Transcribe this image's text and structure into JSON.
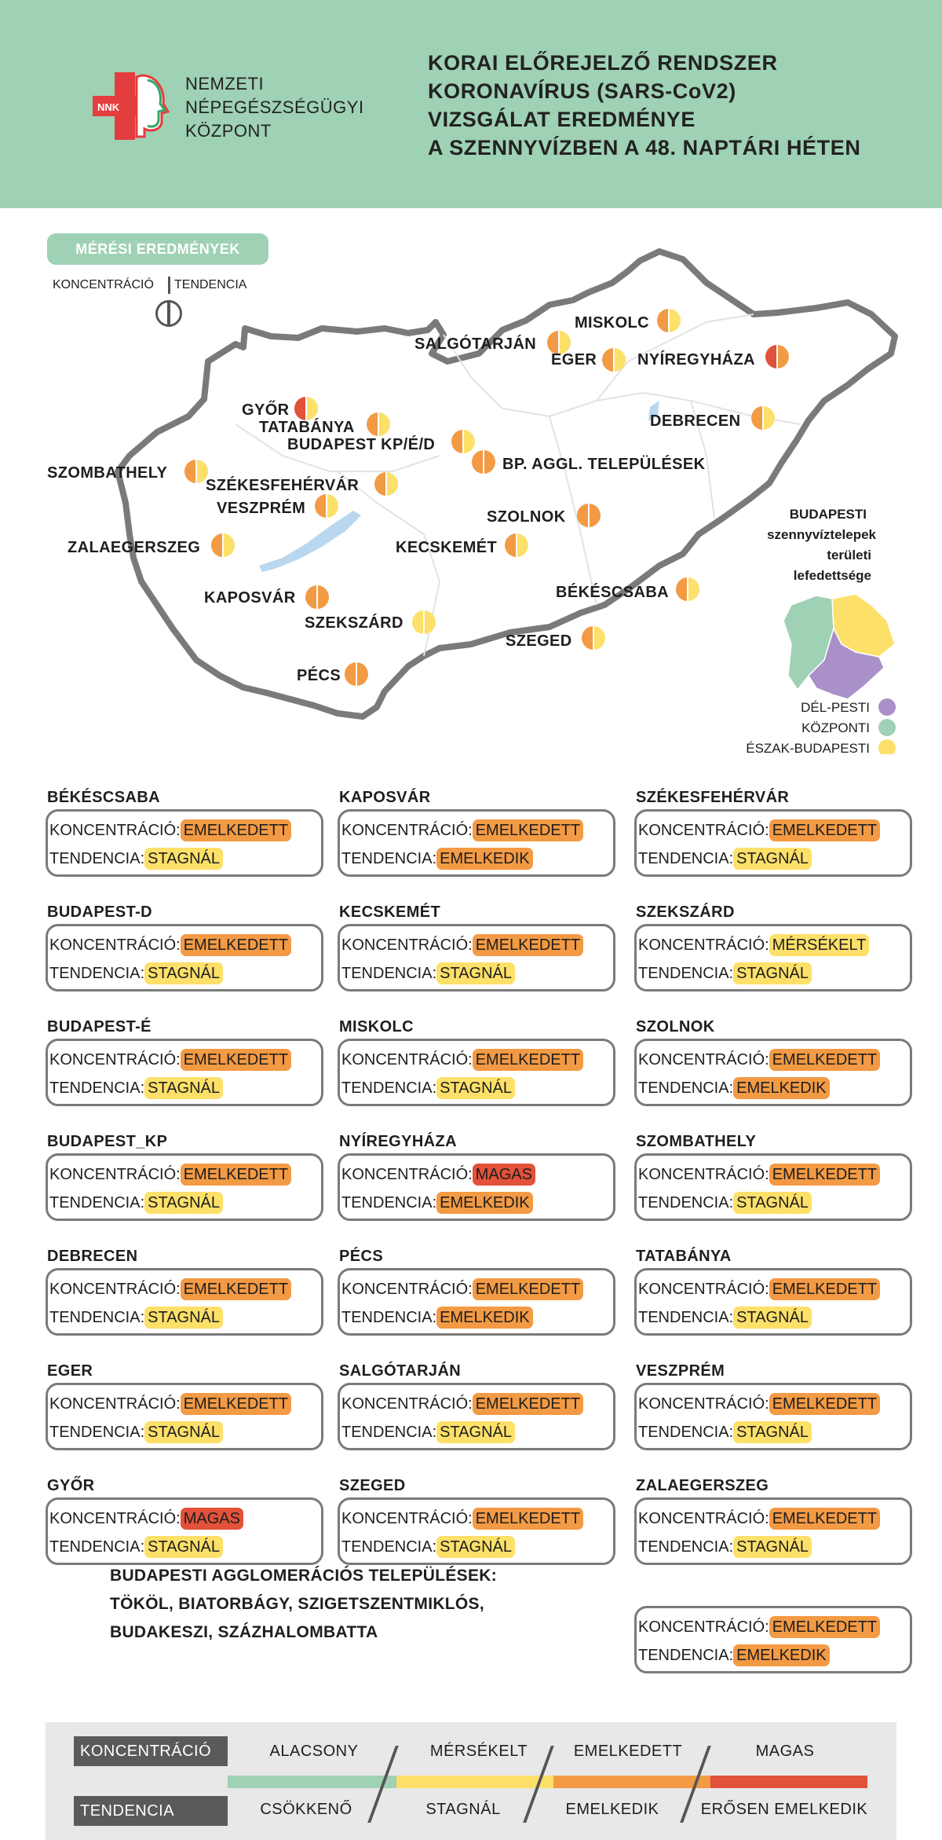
{
  "header": {
    "logo_badge": "NNK",
    "logo_lines": [
      "NEMZETI",
      "NÉPEGÉSZSÉGÜGYI",
      "KÖZPONT"
    ],
    "title_lines": [
      "KORAI ELŐREJELZŐ RENDSZER",
      "KORONAVÍRUS (SARS-CoV2)",
      "VIZSGÁLAT EREDMÉNYE",
      "A SZENNYVÍZBEN A 48. NAPTÁRI HÉTEN"
    ]
  },
  "map_section": {
    "pill_label": "MÉRÉSI EREDMÉNYEK",
    "legend_concentration": "KONCENTRÁCIÓ",
    "legend_tendency": "TENDENCIA"
  },
  "colors": {
    "alacsony": "#9fd1b4",
    "mersekelt": "#fde069",
    "emelkedett": "#f39a44",
    "magas": "#e2513a",
    "csokkeno": "#9fd1b4",
    "stagnal": "#fde069",
    "emelkedik": "#f39a44",
    "erosen_emelkedik": "#e2513a",
    "outline": "#7a7a7a",
    "lake": "#b9d7ee"
  },
  "map_labels": [
    {
      "name": "MISKOLC",
      "conc": "emelkedett",
      "tend": "stagnal"
    },
    {
      "name": "SALGÓTARJÁN",
      "conc": "emelkedett",
      "tend": "stagnal"
    },
    {
      "name": "EGER",
      "conc": "emelkedett",
      "tend": "stagnal"
    },
    {
      "name": "NYÍREGYHÁZA",
      "conc": "magas",
      "tend": "emelkedik"
    },
    {
      "name": "GYŐR",
      "conc": "magas",
      "tend": "stagnal"
    },
    {
      "name": "TATABÁNYA",
      "conc": "emelkedett",
      "tend": "stagnal"
    },
    {
      "name": "BUDAPEST KP/É/D",
      "conc": "emelkedett",
      "tend": "stagnal"
    },
    {
      "name": "DEBRECEN",
      "conc": "emelkedett",
      "tend": "stagnal"
    },
    {
      "name": "BP. AGGL. TELEPÜLÉSEK",
      "conc": "emelkedett",
      "tend": "emelkedik"
    },
    {
      "name": "SZOMBATHELY",
      "conc": "emelkedett",
      "tend": "stagnal"
    },
    {
      "name": "SZÉKESFEHÉRVÁR",
      "conc": "emelkedett",
      "tend": "stagnal"
    },
    {
      "name": "VESZPRÉM",
      "conc": "emelkedett",
      "tend": "stagnal"
    },
    {
      "name": "SZOLNOK",
      "conc": "emelkedett",
      "tend": "emelkedik"
    },
    {
      "name": "ZALAEGERSZEG",
      "conc": "emelkedett",
      "tend": "stagnal"
    },
    {
      "name": "KECSKEMÉT",
      "conc": "emelkedett",
      "tend": "stagnal"
    },
    {
      "name": "BÉKÉSCSABA",
      "conc": "emelkedett",
      "tend": "stagnal"
    },
    {
      "name": "KAPOSVÁR",
      "conc": "emelkedett",
      "tend": "emelkedik"
    },
    {
      "name": "SZEKSZÁRD",
      "conc": "mersekelt",
      "tend": "stagnal"
    },
    {
      "name": "SZEGED",
      "conc": "emelkedett",
      "tend": "stagnal"
    },
    {
      "name": "PÉCS",
      "conc": "emelkedett",
      "tend": "emelkedik"
    }
  ],
  "budapest_legend": {
    "title_lines": [
      "BUDAPESTI",
      "szennyvíztelepek",
      "területi",
      "lefedettsége"
    ],
    "items": [
      {
        "label": "DÉL-PESTI",
        "color": "#a990c8"
      },
      {
        "label": "KÖZPONTI",
        "color": "#9fd1b4"
      },
      {
        "label": "ÉSZAK-BUDAPESTI",
        "color": "#fde069"
      }
    ]
  },
  "card_labels": {
    "concentration": "KONCENTRÁCIÓ:",
    "tendency": "TENDENCIA:"
  },
  "value_labels": {
    "emelkedett": "EMELKEDETT",
    "mersekelt": "MÉRSÉKELT",
    "magas": "MAGAS",
    "stagnal": "STAGNÁL",
    "emelkedik": "EMELKEDIK"
  },
  "cards": [
    {
      "name": "BÉKÉSCSABA",
      "conc": "emelkedett",
      "tend": "stagnal"
    },
    {
      "name": "KAPOSVÁR",
      "conc": "emelkedett",
      "tend": "emelkedik"
    },
    {
      "name": "SZÉKESFEHÉRVÁR",
      "conc": "emelkedett",
      "tend": "stagnal"
    },
    {
      "name": "BUDAPEST-D",
      "conc": "emelkedett",
      "tend": "stagnal"
    },
    {
      "name": "KECSKEMÉT",
      "conc": "emelkedett",
      "tend": "stagnal"
    },
    {
      "name": "SZEKSZÁRD",
      "conc": "mersekelt",
      "tend": "stagnal"
    },
    {
      "name": "BUDAPEST-É",
      "conc": "emelkedett",
      "tend": "stagnal"
    },
    {
      "name": "MISKOLC",
      "conc": "emelkedett",
      "tend": "stagnal"
    },
    {
      "name": "SZOLNOK",
      "conc": "emelkedett",
      "tend": "emelkedik"
    },
    {
      "name": "BUDAPEST_KP",
      "conc": "emelkedett",
      "tend": "stagnal"
    },
    {
      "name": "NYÍREGYHÁZA",
      "conc": "magas",
      "tend": "emelkedik"
    },
    {
      "name": "SZOMBATHELY",
      "conc": "emelkedett",
      "tend": "stagnal"
    },
    {
      "name": "DEBRECEN",
      "conc": "emelkedett",
      "tend": "stagnal"
    },
    {
      "name": "PÉCS",
      "conc": "emelkedett",
      "tend": "emelkedik"
    },
    {
      "name": "TATABÁNYA",
      "conc": "emelkedett",
      "tend": "stagnal"
    },
    {
      "name": "EGER",
      "conc": "emelkedett",
      "tend": "stagnal"
    },
    {
      "name": "SALGÓTARJÁN",
      "conc": "emelkedett",
      "tend": "stagnal"
    },
    {
      "name": "VESZPRÉM",
      "conc": "emelkedett",
      "tend": "stagnal"
    },
    {
      "name": "GYŐR",
      "conc": "magas",
      "tend": "stagnal"
    },
    {
      "name": "SZEGED",
      "conc": "emelkedett",
      "tend": "stagnal"
    },
    {
      "name": "ZALAEGERSZEG",
      "conc": "emelkedett",
      "tend": "stagnal"
    },
    {
      "name": "",
      "conc": "emelkedett",
      "tend": "emelkedik"
    }
  ],
  "agglomeration": {
    "lines": [
      "BUDAPESTI AGGLOMERÁCIÓS TELEPÜLÉSEK:",
      "TÖKÖL, BIATORBÁGY, SZIGETSZENTMIKLÓS,",
      "BUDAKESZI, SZÁZHALOMBATTA"
    ]
  },
  "bottom_legend": {
    "concentration_title": "KONCENTRÁCIÓ",
    "tendency_title": "TENDENCIA",
    "concentration_levels": [
      "ALACSONY",
      "MÉRSÉKELT",
      "EMELKEDETT",
      "MAGAS"
    ],
    "tendency_levels": [
      "CSÖKKENŐ",
      "STAGNÁL",
      "EMELKEDIK",
      "ERŐSEN EMELKEDIK"
    ]
  }
}
